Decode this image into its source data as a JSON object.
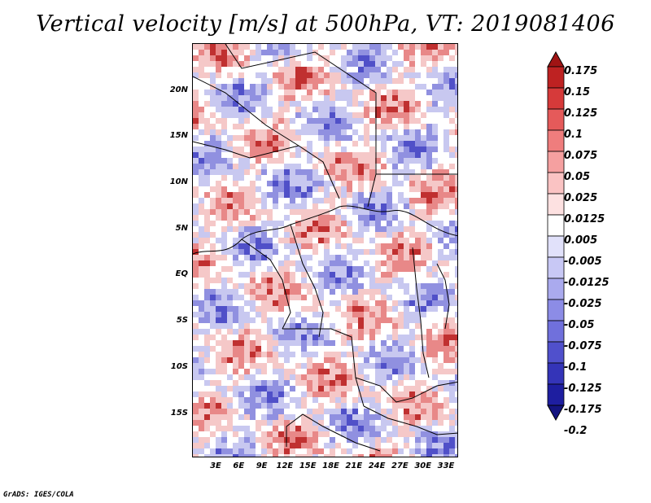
{
  "title": "Vertical velocity [m/s] at 500hPa, VT: 2019081406",
  "credit": "GrADS: IGES/COLA",
  "map": {
    "lat_labels": [
      "20N",
      "15N",
      "10N",
      "5N",
      "EQ",
      "5S",
      "10S",
      "15S"
    ],
    "lon_labels": [
      "3E",
      "6E",
      "9E",
      "12E",
      "15E",
      "18E",
      "21E",
      "24E",
      "27E",
      "30E",
      "33E"
    ],
    "field_colors": {
      "strong_up": "#c03030",
      "up": "#e88888",
      "weak_up": "#f5c8c8",
      "neutral": "#ffffff",
      "weak_down": "#c8c8f0",
      "down": "#9090e0",
      "strong_down": "#5050c8"
    }
  },
  "colorbar": {
    "labels": [
      "0.175",
      "0.15",
      "0.125",
      "0.1",
      "0.075",
      "0.05",
      "0.025",
      "0.0125",
      "0.005",
      "-0.005",
      "-0.0125",
      "-0.025",
      "-0.05",
      "-0.075",
      "-0.1",
      "-0.125",
      "-0.175",
      "-0.2"
    ],
    "colors": [
      "#a01414",
      "#be2222",
      "#d63a3a",
      "#e55a5a",
      "#ef7d7d",
      "#f5a0a0",
      "#fac3c3",
      "#fde1e1",
      "#ffffff",
      "#e1e1fa",
      "#c8c8f5",
      "#aaaaee",
      "#8c8ce6",
      "#7070dc",
      "#5050cc",
      "#3434b8",
      "#1e1ea0",
      "#141480"
    ]
  }
}
